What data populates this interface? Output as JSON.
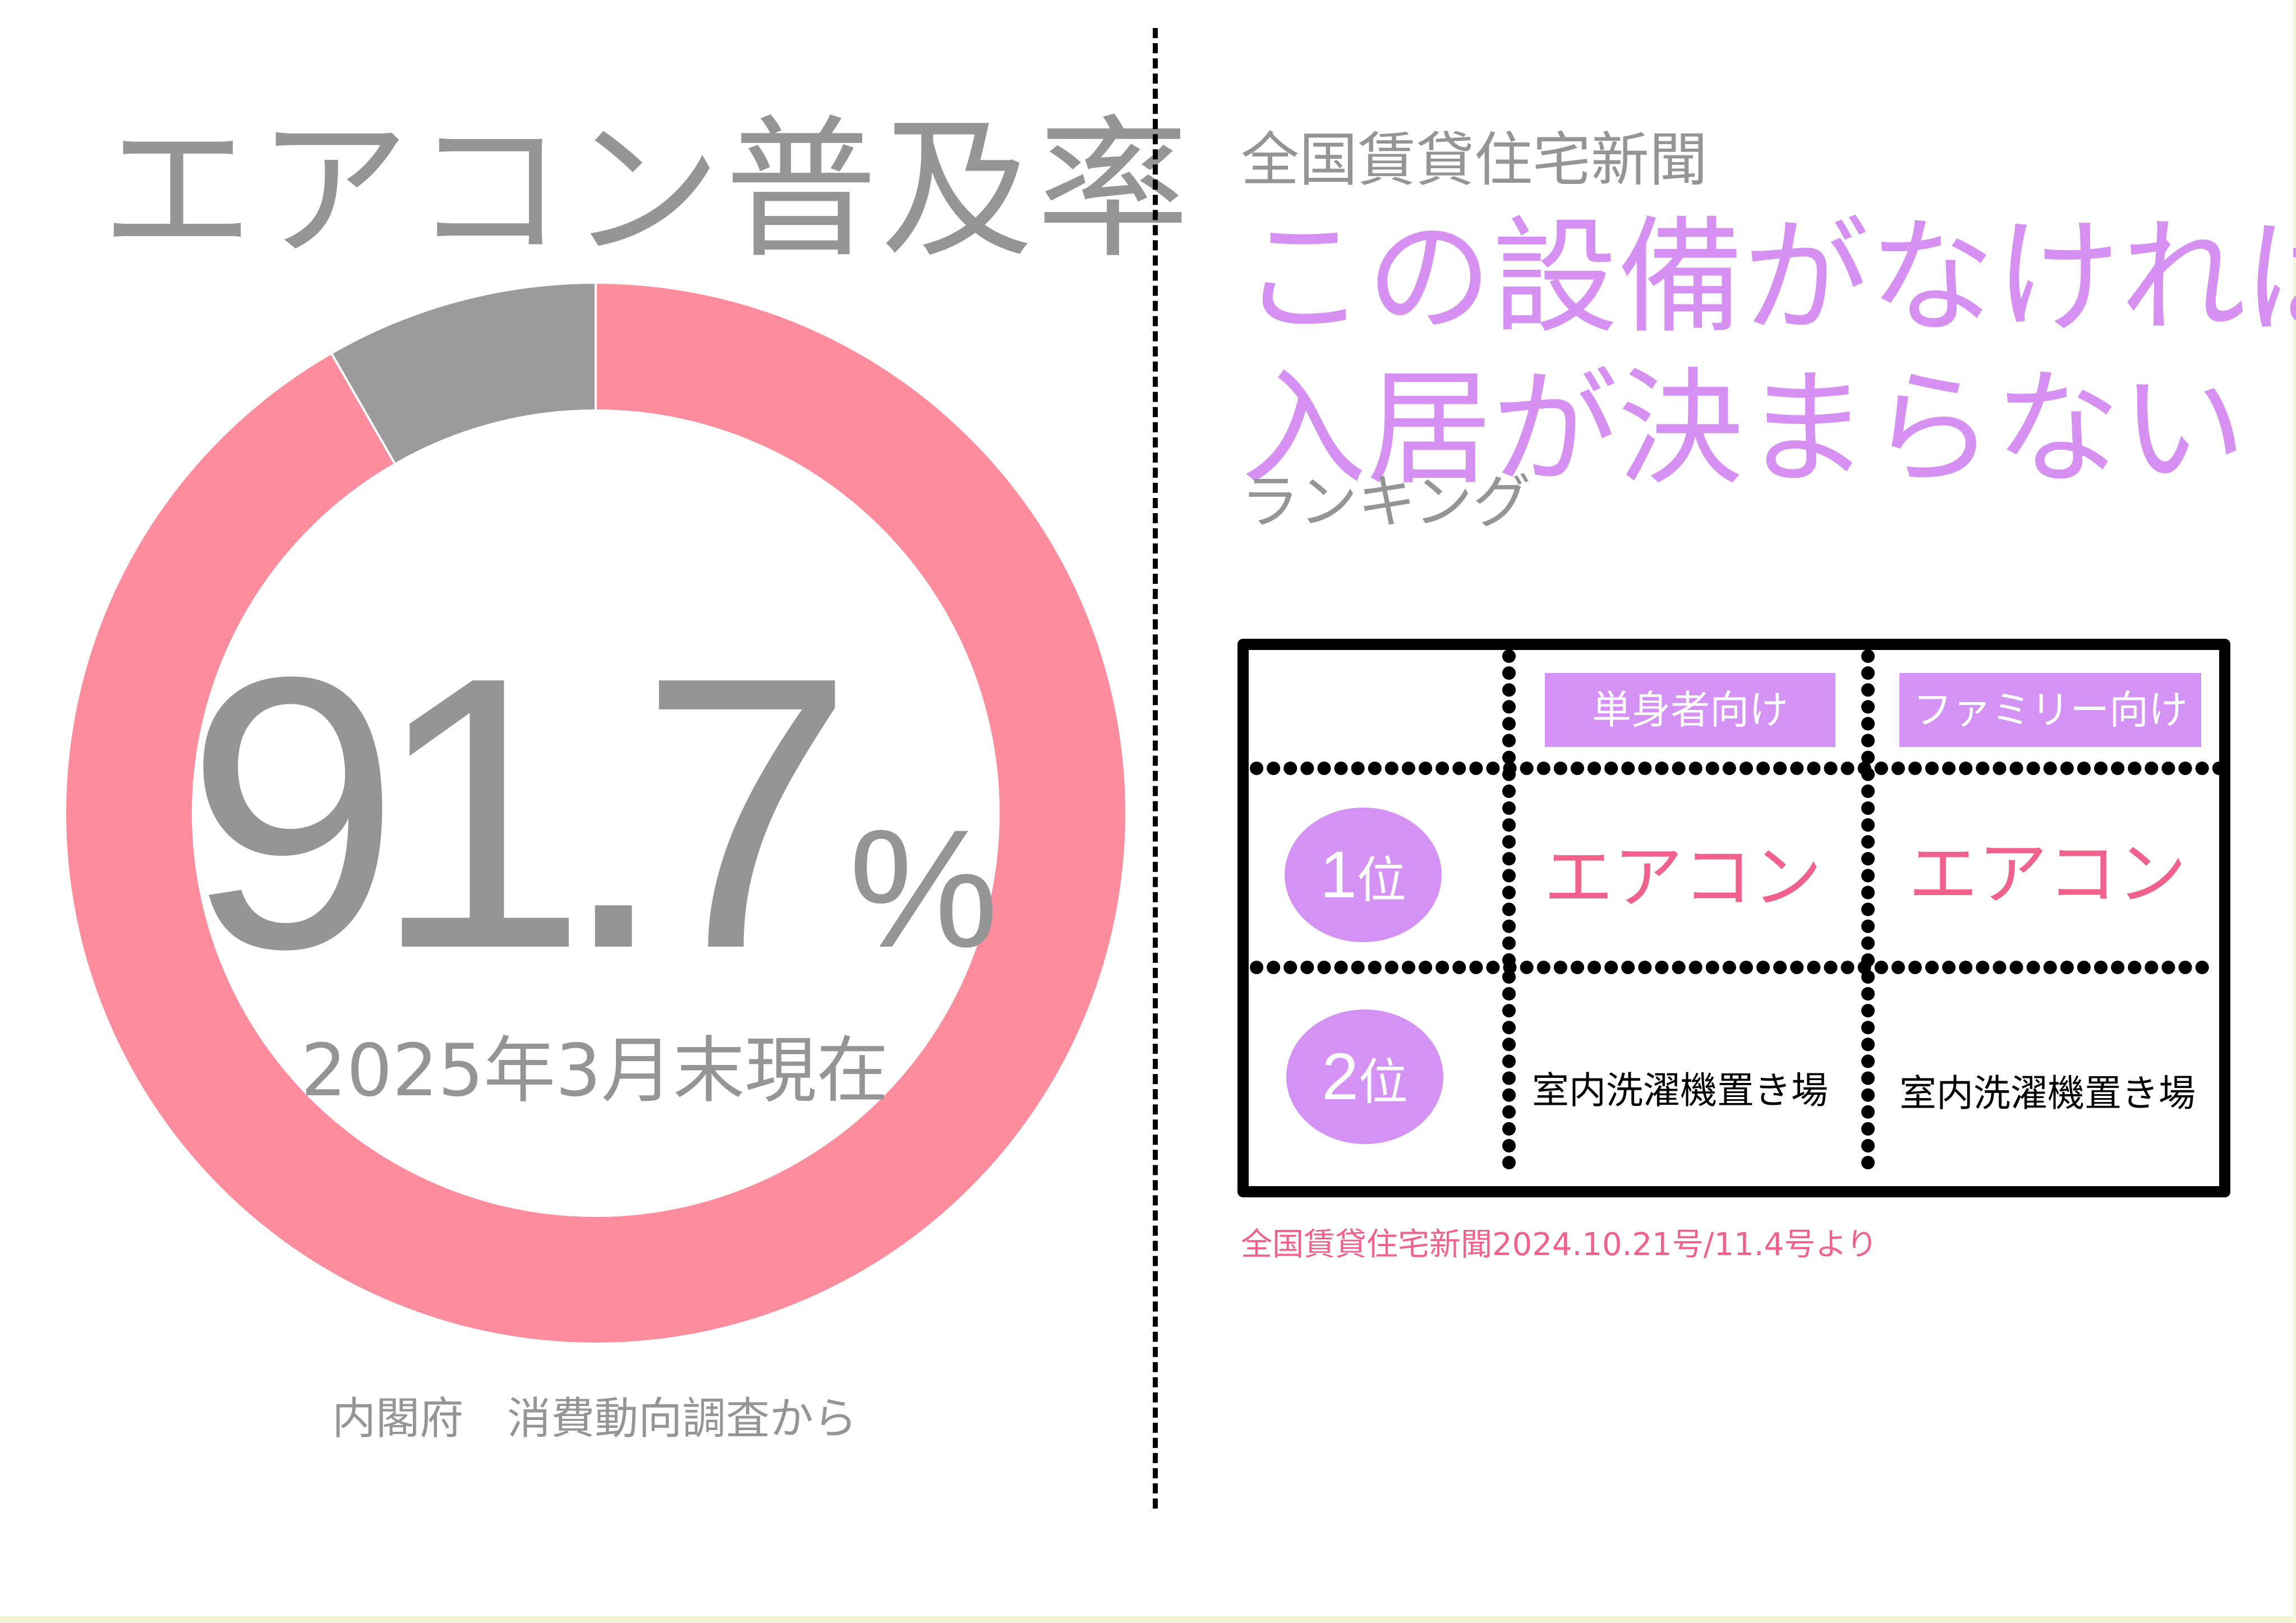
{
  "left": {
    "title": "エアコン普及率",
    "big_number": "91.7",
    "percent_sign": "%",
    "as_of": "2025年3月末現在",
    "source": "内閣府　消費動向調査から"
  },
  "right": {
    "newspaper": "全国賃貸住宅新聞",
    "headline_line1": "この設備がなければ",
    "headline_line2": "入居が決まらない",
    "subheading": "ランキング",
    "columns": [
      "単身者向け",
      "ファミリー向け"
    ],
    "rows": [
      {
        "rank_number": "1",
        "rank_suffix": "位",
        "single": "エアコン",
        "family": "エアコン"
      },
      {
        "rank_number": "2",
        "rank_suffix": "位",
        "single": "室内洗濯機置き場",
        "family": "室内洗濯機置き場"
      }
    ],
    "source": "全国賃貸住宅新聞2024.10.21号/11.4号より"
  },
  "colors": {
    "adopted": "#fd8c9c",
    "not_adopted": "#9b9b9b",
    "headline": "#d590f2",
    "badge": "#d493f4",
    "accent_text": "#f0628c",
    "gray_text": "#959595"
  },
  "chart_data": {
    "type": "pie",
    "variant": "donut",
    "title": "エアコン普及率",
    "slices": [
      {
        "value": 91.7,
        "color": "#fd8c9c"
      },
      {
        "value": 8.3,
        "color": "#9b9b9b"
      }
    ],
    "unit": "%",
    "start": "top",
    "direction": "clockwise"
  }
}
